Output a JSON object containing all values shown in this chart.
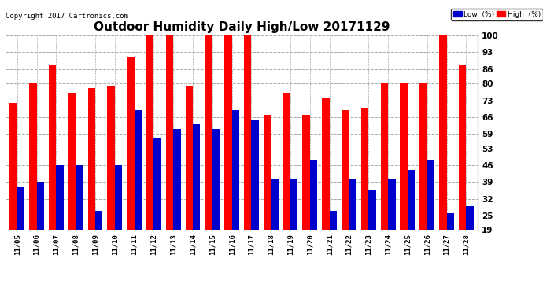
{
  "title": "Outdoor Humidity Daily High/Low 20171129",
  "copyright": "Copyright 2017 Cartronics.com",
  "dates": [
    "11/05",
    "11/06",
    "11/07",
    "11/08",
    "11/09",
    "11/10",
    "11/11",
    "11/12",
    "11/13",
    "11/14",
    "11/15",
    "11/16",
    "11/17",
    "11/18",
    "11/19",
    "11/20",
    "11/21",
    "11/22",
    "11/23",
    "11/24",
    "11/25",
    "11/26",
    "11/27",
    "11/28"
  ],
  "high": [
    72,
    80,
    88,
    76,
    78,
    79,
    91,
    100,
    100,
    79,
    100,
    100,
    100,
    67,
    76,
    67,
    74,
    69,
    70,
    80,
    80,
    80,
    100,
    88
  ],
  "low": [
    37,
    39,
    46,
    46,
    27,
    46,
    69,
    57,
    61,
    63,
    61,
    69,
    65,
    40,
    40,
    48,
    27,
    40,
    36,
    40,
    44,
    48,
    26,
    29
  ],
  "ylim": [
    19,
    100
  ],
  "yticks": [
    19,
    25,
    32,
    39,
    46,
    53,
    59,
    66,
    73,
    80,
    86,
    93,
    100
  ],
  "bar_width": 0.38,
  "high_color": "#FF0000",
  "low_color": "#0000CC",
  "bg_color": "#FFFFFF",
  "grid_color": "#AAAAAA",
  "title_fontsize": 11,
  "copyright_fontsize": 6.5,
  "legend_low_label": "Low  (%)",
  "legend_high_label": "High  (%)"
}
